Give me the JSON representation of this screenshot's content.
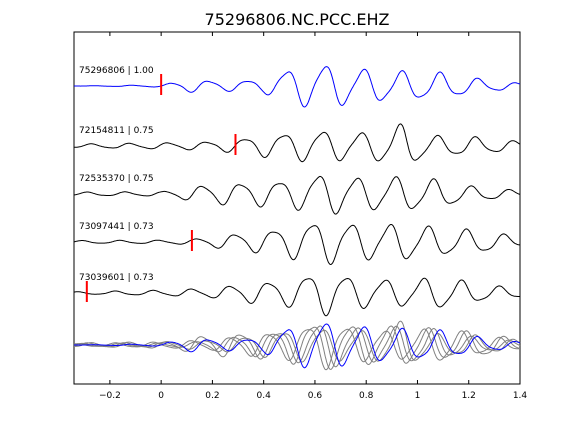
{
  "chart_data": {
    "type": "line",
    "title": "75296806.NC.PCC.EHZ",
    "xlabel": "",
    "ylabel": "",
    "xlim": [
      -0.34,
      1.4
    ],
    "xticks": [
      -0.2,
      0,
      0.2,
      0.4,
      0.6,
      0.8,
      1,
      1.2,
      1.4
    ],
    "xtick_labels": [
      "−0.2",
      "0",
      "0.2",
      "0.4",
      "0.6",
      "0.8",
      "1",
      "1.2",
      "1.4"
    ],
    "grid": false,
    "colors": {
      "reference": "#0000ff",
      "trace": "#000000",
      "stack": "#808080",
      "pick": "#ff0000"
    },
    "traces": [
      {
        "label": "75296806 | 1.00",
        "pick_time": 0.0,
        "color": "#0000ff",
        "envelope": [
          [
            -0.34,
            0
          ],
          [
            -0.2,
            0.02
          ],
          [
            0,
            0.05
          ],
          [
            0.1,
            0.28
          ],
          [
            0.25,
            0.22
          ],
          [
            0.4,
            0.3
          ],
          [
            0.5,
            0.8
          ],
          [
            0.62,
            1.0
          ],
          [
            0.8,
            0.75
          ],
          [
            1.0,
            0.62
          ],
          [
            1.1,
            0.58
          ],
          [
            1.25,
            0.3
          ],
          [
            1.4,
            0.12
          ]
        ],
        "period": 0.15,
        "phase": 0.0
      },
      {
        "label": "72154811 | 0.75",
        "pick_time": 0.29,
        "color": "#000000",
        "envelope": [
          [
            -0.34,
            0.08
          ],
          [
            0,
            0.14
          ],
          [
            0.2,
            0.2
          ],
          [
            0.3,
            0.32
          ],
          [
            0.45,
            0.55
          ],
          [
            0.6,
            0.72
          ],
          [
            0.8,
            0.6
          ],
          [
            0.95,
            1.0
          ],
          [
            1.05,
            0.45
          ],
          [
            1.2,
            0.42
          ],
          [
            1.4,
            0.2
          ]
        ],
        "period": 0.15,
        "phase": 0.4
      },
      {
        "label": "72535370 | 0.75",
        "pick_time": null,
        "color": "#000000",
        "envelope": [
          [
            -0.34,
            0.08
          ],
          [
            0,
            0.1
          ],
          [
            0.1,
            0.28
          ],
          [
            0.2,
            0.45
          ],
          [
            0.4,
            0.55
          ],
          [
            0.55,
            0.7
          ],
          [
            0.62,
            0.95
          ],
          [
            0.8,
            0.72
          ],
          [
            0.95,
            0.78
          ],
          [
            1.1,
            0.6
          ],
          [
            1.2,
            0.35
          ],
          [
            1.4,
            0.15
          ]
        ],
        "period": 0.15,
        "phase": 1.1
      },
      {
        "label": "73097441 | 0.73",
        "pick_time": 0.12,
        "color": "#000000",
        "envelope": [
          [
            -0.34,
            0.06
          ],
          [
            0,
            0.08
          ],
          [
            0.12,
            0.12
          ],
          [
            0.25,
            0.32
          ],
          [
            0.4,
            0.5
          ],
          [
            0.5,
            0.7
          ],
          [
            0.62,
            1.0
          ],
          [
            0.8,
            0.8
          ],
          [
            0.95,
            0.82
          ],
          [
            1.1,
            0.62
          ],
          [
            1.25,
            0.5
          ],
          [
            1.4,
            0.22
          ]
        ],
        "period": 0.15,
        "phase": 2.0
      },
      {
        "label": "73039601 | 0.73",
        "pick_time": -0.29,
        "color": "#000000",
        "envelope": [
          [
            -0.34,
            0.05
          ],
          [
            -0.2,
            0.08
          ],
          [
            0,
            0.12
          ],
          [
            0.2,
            0.22
          ],
          [
            0.35,
            0.45
          ],
          [
            0.5,
            0.6
          ],
          [
            0.62,
            1.0
          ],
          [
            0.8,
            0.65
          ],
          [
            0.95,
            0.6
          ],
          [
            1.1,
            0.72
          ],
          [
            1.25,
            0.38
          ],
          [
            1.4,
            0.2
          ]
        ],
        "period": 0.15,
        "phase": 2.8
      }
    ]
  }
}
